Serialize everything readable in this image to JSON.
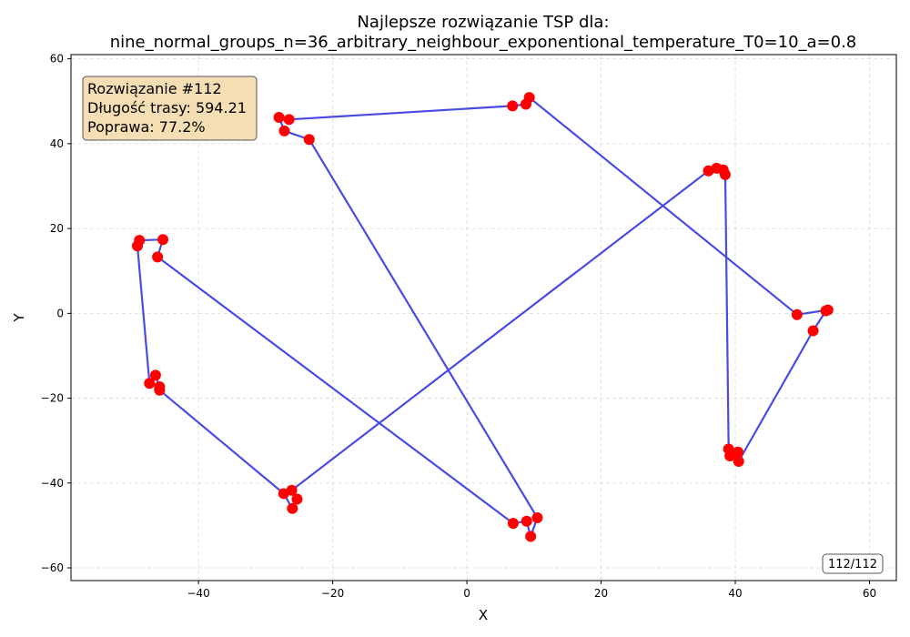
{
  "chart_data": {
    "type": "scatter",
    "title_line1": "Najlepsze rozwiązanie TSP dla:",
    "title_line2": "nine_normal_groups_n=36_arbitrary_neighbour_exponentional_temperature_T0=10_a=0.8",
    "xlabel": "X",
    "ylabel": "Y",
    "xlim": [
      -59,
      64
    ],
    "ylim": [
      -63,
      61
    ],
    "xticks": [
      -40,
      -20,
      0,
      20,
      40,
      60
    ],
    "yticks": [
      -60,
      -40,
      -20,
      0,
      20,
      40,
      60
    ],
    "xtick_labels": [
      "−40",
      "−20",
      "0",
      "20",
      "40",
      "60"
    ],
    "ytick_labels": [
      "−60",
      "−40",
      "−20",
      "0",
      "20",
      "40",
      "60"
    ],
    "grid": true,
    "route_color": "#4a4ae6",
    "point_color": "#ff0000",
    "info_box": {
      "line1": "Rozwiązanie #112",
      "line2": "Długość trasy: 594.21",
      "line3": "Poprawa: 77.2%",
      "background": "#f5deb3"
    },
    "frame_counter": "112/112",
    "route": [
      {
        "x": -28.0,
        "y": 46.2
      },
      {
        "x": -26.5,
        "y": 45.7
      },
      {
        "x": 6.8,
        "y": 48.9
      },
      {
        "x": 8.8,
        "y": 49.3
      },
      {
        "x": 9.3,
        "y": 50.9
      },
      {
        "x": 49.2,
        "y": -0.3
      },
      {
        "x": 53.8,
        "y": 0.8
      },
      {
        "x": 53.5,
        "y": 0.6
      },
      {
        "x": 51.6,
        "y": -4.1
      },
      {
        "x": 40.5,
        "y": -34.9
      },
      {
        "x": 40.4,
        "y": -32.7
      },
      {
        "x": 39.2,
        "y": -33.6
      },
      {
        "x": 39.0,
        "y": -32.0
      },
      {
        "x": 38.5,
        "y": 32.7
      },
      {
        "x": 38.2,
        "y": 33.8
      },
      {
        "x": 37.2,
        "y": 34.2
      },
      {
        "x": 36.0,
        "y": 33.6
      },
      {
        "x": -26.1,
        "y": -41.7
      },
      {
        "x": -25.3,
        "y": -43.8
      },
      {
        "x": -26.0,
        "y": -46.0
      },
      {
        "x": -27.3,
        "y": -42.5
      },
      {
        "x": -45.8,
        "y": -18.1
      },
      {
        "x": -45.8,
        "y": -17.3
      },
      {
        "x": -46.4,
        "y": -14.6
      },
      {
        "x": -47.3,
        "y": -16.5
      },
      {
        "x": -49.1,
        "y": 15.9
      },
      {
        "x": -48.8,
        "y": 17.2
      },
      {
        "x": -45.3,
        "y": 17.4
      },
      {
        "x": -46.1,
        "y": 13.3
      },
      {
        "x": 6.9,
        "y": -49.5
      },
      {
        "x": 8.9,
        "y": -49.0
      },
      {
        "x": 9.5,
        "y": -52.6
      },
      {
        "x": 10.5,
        "y": -48.2
      },
      {
        "x": -23.5,
        "y": 41.0
      },
      {
        "x": -27.2,
        "y": 43.0
      },
      {
        "x": -28.0,
        "y": 46.2
      }
    ]
  }
}
